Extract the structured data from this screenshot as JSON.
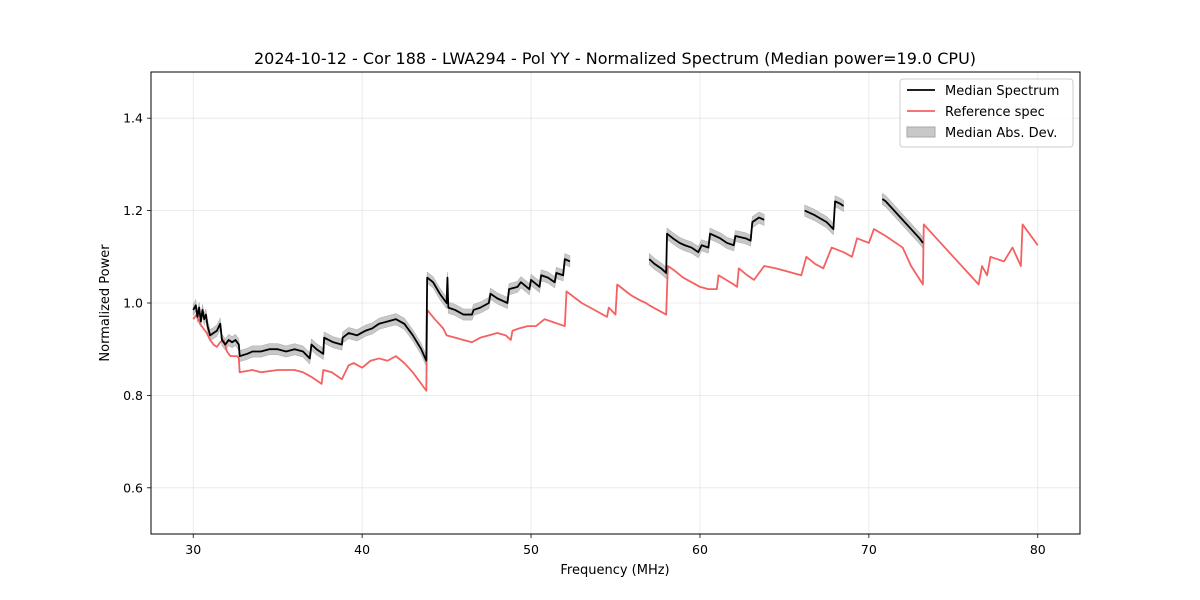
{
  "chart_data": {
    "type": "line",
    "title": "2024-10-12 - Cor 188 - LWA294 - Pol YY - Normalized Spectrum (Median power=19.0 CPU)",
    "xlabel": "Frequency (MHz)",
    "ylabel": "Normalized Power",
    "xlim": [
      27.5,
      82.5
    ],
    "ylim": [
      0.5,
      1.5
    ],
    "xticks": [
      30,
      40,
      50,
      60,
      70,
      80
    ],
    "yticks": [
      0.6,
      0.8,
      1.0,
      1.2,
      1.4
    ],
    "xtick_labels": [
      "30",
      "40",
      "50",
      "60",
      "70",
      "80"
    ],
    "ytick_labels": [
      "0.6",
      "0.8",
      "1.0",
      "1.2",
      "1.4"
    ],
    "grid": true,
    "legend_position": "top-right",
    "legend": [
      {
        "label": "Median Spectrum",
        "color": "#000000",
        "kind": "line"
      },
      {
        "label": "Reference spec",
        "color": "#f46161",
        "kind": "line"
      },
      {
        "label": "Median Abs. Dev.",
        "color": "#c8c8c8",
        "kind": "band"
      }
    ],
    "series": [
      {
        "name": "Reference spec",
        "color": "#f46161",
        "points": [
          [
            30.0,
            0.965
          ],
          [
            30.2,
            0.975
          ],
          [
            30.4,
            0.955
          ],
          [
            30.6,
            0.945
          ],
          [
            30.8,
            0.935
          ],
          [
            31.0,
            0.92
          ],
          [
            31.2,
            0.91
          ],
          [
            31.4,
            0.905
          ],
          [
            31.6,
            0.915
          ],
          [
            31.8,
            0.92
          ],
          [
            32.0,
            0.895
          ],
          [
            32.2,
            0.885
          ],
          [
            32.4,
            0.885
          ],
          [
            32.6,
            0.885
          ],
          [
            32.7,
            0.88
          ],
          [
            32.75,
            0.85
          ],
          [
            33.5,
            0.855
          ],
          [
            34.0,
            0.85
          ],
          [
            35.0,
            0.855
          ],
          [
            36.0,
            0.855
          ],
          [
            36.5,
            0.85
          ],
          [
            37.0,
            0.84
          ],
          [
            37.6,
            0.825
          ],
          [
            37.7,
            0.855
          ],
          [
            38.2,
            0.85
          ],
          [
            38.8,
            0.835
          ],
          [
            39.2,
            0.865
          ],
          [
            39.5,
            0.87
          ],
          [
            40.0,
            0.86
          ],
          [
            40.5,
            0.875
          ],
          [
            41.0,
            0.88
          ],
          [
            41.5,
            0.875
          ],
          [
            42.0,
            0.885
          ],
          [
            42.5,
            0.87
          ],
          [
            43.0,
            0.85
          ],
          [
            43.5,
            0.825
          ],
          [
            43.8,
            0.81
          ],
          [
            43.85,
            0.985
          ],
          [
            44.3,
            0.965
          ],
          [
            44.8,
            0.945
          ],
          [
            45.0,
            0.93
          ],
          [
            45.5,
            0.925
          ],
          [
            46.0,
            0.92
          ],
          [
            46.5,
            0.915
          ],
          [
            47.0,
            0.925
          ],
          [
            47.5,
            0.93
          ],
          [
            48.0,
            0.935
          ],
          [
            48.5,
            0.93
          ],
          [
            48.8,
            0.92
          ],
          [
            48.9,
            0.94
          ],
          [
            49.3,
            0.945
          ],
          [
            49.8,
            0.95
          ],
          [
            50.3,
            0.95
          ],
          [
            50.8,
            0.965
          ],
          [
            51.2,
            0.96
          ],
          [
            51.6,
            0.955
          ],
          [
            52.0,
            0.95
          ],
          [
            52.1,
            1.025
          ],
          [
            53.0,
            1.0
          ],
          [
            54.0,
            0.98
          ],
          [
            54.5,
            0.97
          ],
          [
            54.6,
            0.99
          ],
          [
            55.0,
            0.975
          ],
          [
            55.1,
            1.04
          ],
          [
            55.8,
            1.02
          ],
          [
            56.0,
            1.015
          ],
          [
            56.5,
            1.005
          ],
          [
            56.8,
            1.0
          ],
          [
            57.0,
            0.995
          ],
          [
            57.5,
            0.985
          ],
          [
            58.0,
            0.975
          ],
          [
            58.1,
            1.08
          ],
          [
            58.5,
            1.07
          ],
          [
            59.0,
            1.055
          ],
          [
            59.5,
            1.045
          ],
          [
            60.0,
            1.035
          ],
          [
            60.5,
            1.03
          ],
          [
            61.0,
            1.03
          ],
          [
            61.1,
            1.06
          ],
          [
            62.0,
            1.04
          ],
          [
            62.2,
            1.035
          ],
          [
            62.3,
            1.075
          ],
          [
            62.8,
            1.06
          ],
          [
            63.2,
            1.05
          ],
          [
            63.8,
            1.08
          ],
          [
            64.5,
            1.075
          ],
          [
            65.0,
            1.07
          ],
          [
            65.5,
            1.065
          ],
          [
            66.0,
            1.06
          ],
          [
            66.3,
            1.1
          ],
          [
            66.8,
            1.085
          ],
          [
            67.3,
            1.075
          ],
          [
            67.8,
            1.12
          ],
          [
            68.5,
            1.11
          ],
          [
            69.0,
            1.1
          ],
          [
            69.3,
            1.14
          ],
          [
            70.0,
            1.13
          ],
          [
            70.3,
            1.16
          ],
          [
            71.0,
            1.145
          ],
          [
            72.0,
            1.12
          ],
          [
            72.5,
            1.08
          ],
          [
            73.2,
            1.04
          ],
          [
            73.25,
            1.17
          ],
          [
            74.0,
            1.14
          ],
          [
            75.0,
            1.1
          ],
          [
            75.5,
            1.08
          ],
          [
            76.0,
            1.06
          ],
          [
            76.5,
            1.04
          ],
          [
            76.7,
            1.08
          ],
          [
            77.0,
            1.06
          ],
          [
            77.2,
            1.1
          ],
          [
            78.0,
            1.09
          ],
          [
            78.5,
            1.12
          ],
          [
            79.0,
            1.08
          ],
          [
            79.1,
            1.17
          ],
          [
            79.5,
            1.15
          ],
          [
            80.0,
            1.125
          ]
        ]
      },
      {
        "name": "Median Spectrum",
        "color": "#000000",
        "segments": [
          [
            [
              30.0,
              0.985
            ],
            [
              30.15,
              0.995
            ],
            [
              30.25,
              0.97
            ],
            [
              30.35,
              0.99
            ],
            [
              30.45,
              0.96
            ],
            [
              30.55,
              0.985
            ],
            [
              30.65,
              0.965
            ],
            [
              30.75,
              0.975
            ],
            [
              30.85,
              0.95
            ],
            [
              31.0,
              0.93
            ],
            [
              31.2,
              0.935
            ],
            [
              31.4,
              0.94
            ],
            [
              31.6,
              0.955
            ],
            [
              31.7,
              0.92
            ],
            [
              31.9,
              0.91
            ],
            [
              32.1,
              0.92
            ],
            [
              32.3,
              0.915
            ],
            [
              32.5,
              0.92
            ],
            [
              32.7,
              0.91
            ],
            [
              32.75,
              0.885
            ],
            [
              33.2,
              0.89
            ],
            [
              33.5,
              0.895
            ],
            [
              34.0,
              0.895
            ],
            [
              34.5,
              0.9
            ],
            [
              35.0,
              0.9
            ],
            [
              35.5,
              0.895
            ],
            [
              36.0,
              0.9
            ],
            [
              36.5,
              0.895
            ],
            [
              36.9,
              0.88
            ],
            [
              37.0,
              0.91
            ],
            [
              37.3,
              0.9
            ],
            [
              37.7,
              0.89
            ],
            [
              37.75,
              0.925
            ],
            [
              38.3,
              0.915
            ],
            [
              38.8,
              0.91
            ],
            [
              38.85,
              0.925
            ],
            [
              39.2,
              0.935
            ],
            [
              39.7,
              0.93
            ],
            [
              40.2,
              0.94
            ],
            [
              40.6,
              0.945
            ],
            [
              41.0,
              0.955
            ],
            [
              41.5,
              0.96
            ],
            [
              42.0,
              0.965
            ],
            [
              42.5,
              0.955
            ],
            [
              43.0,
              0.93
            ],
            [
              43.5,
              0.9
            ],
            [
              43.8,
              0.875
            ],
            [
              43.85,
              1.055
            ],
            [
              44.2,
              1.045
            ],
            [
              44.6,
              1.02
            ],
            [
              45.0,
              1.0
            ],
            [
              45.05,
              1.055
            ],
            [
              45.1,
              0.99
            ],
            [
              45.5,
              0.985
            ],
            [
              46.0,
              0.975
            ],
            [
              46.5,
              0.975
            ],
            [
              46.6,
              0.985
            ],
            [
              47.0,
              0.99
            ],
            [
              47.5,
              1.0
            ],
            [
              47.6,
              1.02
            ],
            [
              48.0,
              1.01
            ],
            [
              48.6,
              1.0
            ],
            [
              48.7,
              1.03
            ],
            [
              49.2,
              1.035
            ],
            [
              49.4,
              1.045
            ],
            [
              49.9,
              1.03
            ],
            [
              50.0,
              1.05
            ],
            [
              50.5,
              1.035
            ],
            [
              50.6,
              1.06
            ],
            [
              51.0,
              1.055
            ],
            [
              51.4,
              1.045
            ],
            [
              51.5,
              1.065
            ],
            [
              51.9,
              1.06
            ],
            [
              52.0,
              1.095
            ],
            [
              52.3,
              1.09
            ]
          ],
          [
            [
              57.0,
              1.095
            ],
            [
              57.3,
              1.085
            ],
            [
              57.7,
              1.075
            ],
            [
              58.0,
              1.065
            ],
            [
              58.05,
              1.15
            ],
            [
              58.4,
              1.14
            ],
            [
              58.8,
              1.13
            ],
            [
              59.1,
              1.125
            ],
            [
              59.5,
              1.12
            ],
            [
              59.9,
              1.11
            ],
            [
              60.1,
              1.125
            ],
            [
              60.5,
              1.12
            ],
            [
              60.6,
              1.15
            ],
            [
              61.2,
              1.14
            ],
            [
              61.6,
              1.13
            ],
            [
              62.0,
              1.125
            ],
            [
              62.1,
              1.145
            ],
            [
              62.7,
              1.14
            ],
            [
              63.0,
              1.135
            ],
            [
              63.1,
              1.175
            ],
            [
              63.5,
              1.185
            ],
            [
              63.8,
              1.18
            ]
          ],
          [
            [
              66.2,
              1.2
            ],
            [
              66.8,
              1.19
            ],
            [
              67.5,
              1.175
            ],
            [
              67.9,
              1.16
            ],
            [
              68.0,
              1.22
            ],
            [
              68.3,
              1.215
            ],
            [
              68.5,
              1.21
            ]
          ],
          [
            [
              70.8,
              1.225
            ],
            [
              71.0,
              1.22
            ],
            [
              71.5,
              1.2
            ],
            [
              72.0,
              1.18
            ],
            [
              72.5,
              1.16
            ],
            [
              73.0,
              1.14
            ],
            [
              73.2,
              1.13
            ]
          ]
        ]
      }
    ],
    "mad_band_halfwidth": 0.012
  }
}
